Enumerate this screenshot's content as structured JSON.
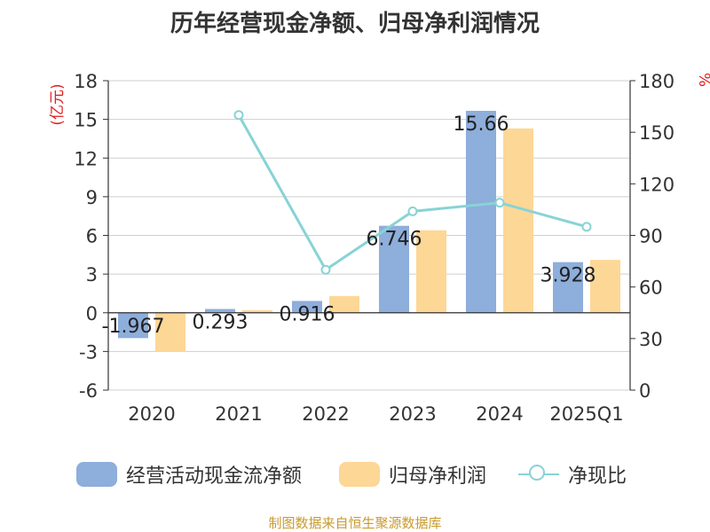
{
  "title": "历年经营现金净额、归母净利润情况",
  "source": "制图数据来自恒生聚源数据库",
  "legend": {
    "operating_cf": "经营活动现金流净额",
    "net_profit": "归母净利润",
    "ratio": "净现比"
  },
  "colors": {
    "operating_cf": "#8eaedb",
    "net_profit": "#fdd796",
    "ratio": "#88d3d6",
    "left_unit": "#e02020",
    "right_unit": "#e02020",
    "source": "#c99a2e"
  },
  "chart_data": {
    "type": "bar",
    "title": "历年经营现金净额、归母净利润情况",
    "categories": [
      "2020",
      "2021",
      "2022",
      "2023",
      "2024",
      "2025Q1"
    ],
    "y_left": {
      "unit": "(亿元)",
      "range": [
        -6,
        18
      ],
      "ticks": [
        "-6",
        "-3",
        "0",
        "3",
        "6",
        "9",
        "12",
        "15",
        "18"
      ]
    },
    "y_right": {
      "unit": "%",
      "range": [
        0,
        180
      ],
      "ticks": [
        "0",
        "30",
        "60",
        "90",
        "120",
        "150",
        "180"
      ]
    },
    "series": [
      {
        "name": "经营活动现金流净额",
        "type": "bar",
        "axis": "left",
        "values": [
          -1.967,
          0.293,
          0.916,
          6.746,
          15.66,
          3.928
        ],
        "labels": [
          "-1.967",
          "0.293",
          "0.916",
          "6.746",
          "15.66",
          "3.928"
        ]
      },
      {
        "name": "归母净利润",
        "type": "bar",
        "axis": "left",
        "values": [
          -3.0,
          0.2,
          1.3,
          6.4,
          14.3,
          4.1
        ]
      },
      {
        "name": "净现比",
        "type": "line",
        "axis": "right",
        "values": [
          null,
          160,
          70,
          104,
          109,
          95
        ]
      }
    ],
    "grid": true,
    "legend_position": "bottom"
  }
}
